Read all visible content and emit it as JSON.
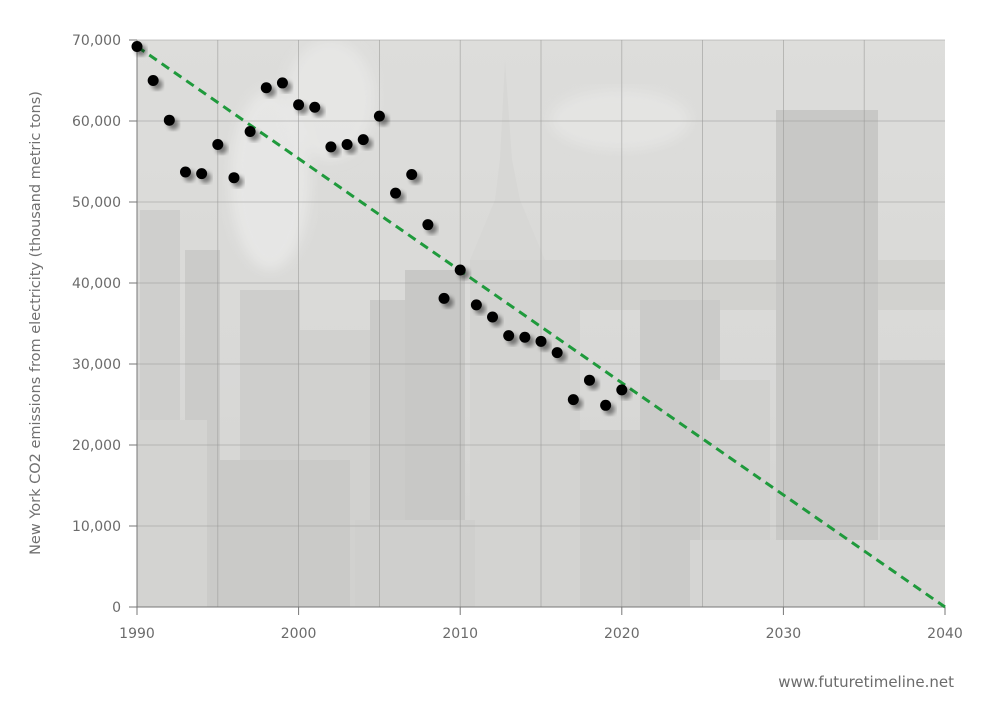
{
  "chart_data": {
    "type": "scatter",
    "ylabel": "New York CO2 emissions from electricity (thousand metric tons)",
    "xlim": [
      1990,
      2040
    ],
    "ylim": [
      0,
      70000
    ],
    "x_ticks": [
      1990,
      2000,
      2010,
      2020,
      2030,
      2040
    ],
    "x_tick_labels": [
      "1990",
      "2000",
      "2010",
      "2020",
      "2030",
      "2040"
    ],
    "y_ticks": [
      0,
      10000,
      20000,
      30000,
      40000,
      50000,
      60000,
      70000
    ],
    "y_tick_labels": [
      "0",
      "10,000",
      "20,000",
      "30,000",
      "40,000",
      "50,000",
      "60,000",
      "70,000"
    ],
    "grid": true,
    "series": [
      {
        "points": [
          {
            "x": 1990,
            "y": 69200
          },
          {
            "x": 1991,
            "y": 65000
          },
          {
            "x": 1992,
            "y": 60100
          },
          {
            "x": 1993,
            "y": 53700
          },
          {
            "x": 1994,
            "y": 53500
          },
          {
            "x": 1995,
            "y": 57100
          },
          {
            "x": 1996,
            "y": 53000
          },
          {
            "x": 1997,
            "y": 58700
          },
          {
            "x": 1998,
            "y": 64100
          },
          {
            "x": 1999,
            "y": 64700
          },
          {
            "x": 2000,
            "y": 62000
          },
          {
            "x": 2001,
            "y": 61700
          },
          {
            "x": 2002,
            "y": 56800
          },
          {
            "x": 2003,
            "y": 57100
          },
          {
            "x": 2004,
            "y": 57700
          },
          {
            "x": 2005,
            "y": 60600
          },
          {
            "x": 2006,
            "y": 51100
          },
          {
            "x": 2007,
            "y": 53400
          },
          {
            "x": 2008,
            "y": 47200
          },
          {
            "x": 2009,
            "y": 38100
          },
          {
            "x": 2010,
            "y": 41600
          },
          {
            "x": 2011,
            "y": 37300
          },
          {
            "x": 2012,
            "y": 35800
          },
          {
            "x": 2013,
            "y": 33500
          },
          {
            "x": 2014,
            "y": 33300
          },
          {
            "x": 2015,
            "y": 32800
          },
          {
            "x": 2016,
            "y": 31400
          },
          {
            "x": 2017,
            "y": 25600
          },
          {
            "x": 2018,
            "y": 28000
          },
          {
            "x": 2019,
            "y": 24900
          },
          {
            "x": 2020,
            "y": 26800
          }
        ],
        "color": "#000000"
      }
    ],
    "trendline": {
      "from": [
        1990,
        69200
      ],
      "to": [
        2040,
        0
      ],
      "color": "#1f9a3c",
      "style": "dashed"
    },
    "background": "faded photo of New York City skyline"
  },
  "credit": "www.futuretimeline.net"
}
